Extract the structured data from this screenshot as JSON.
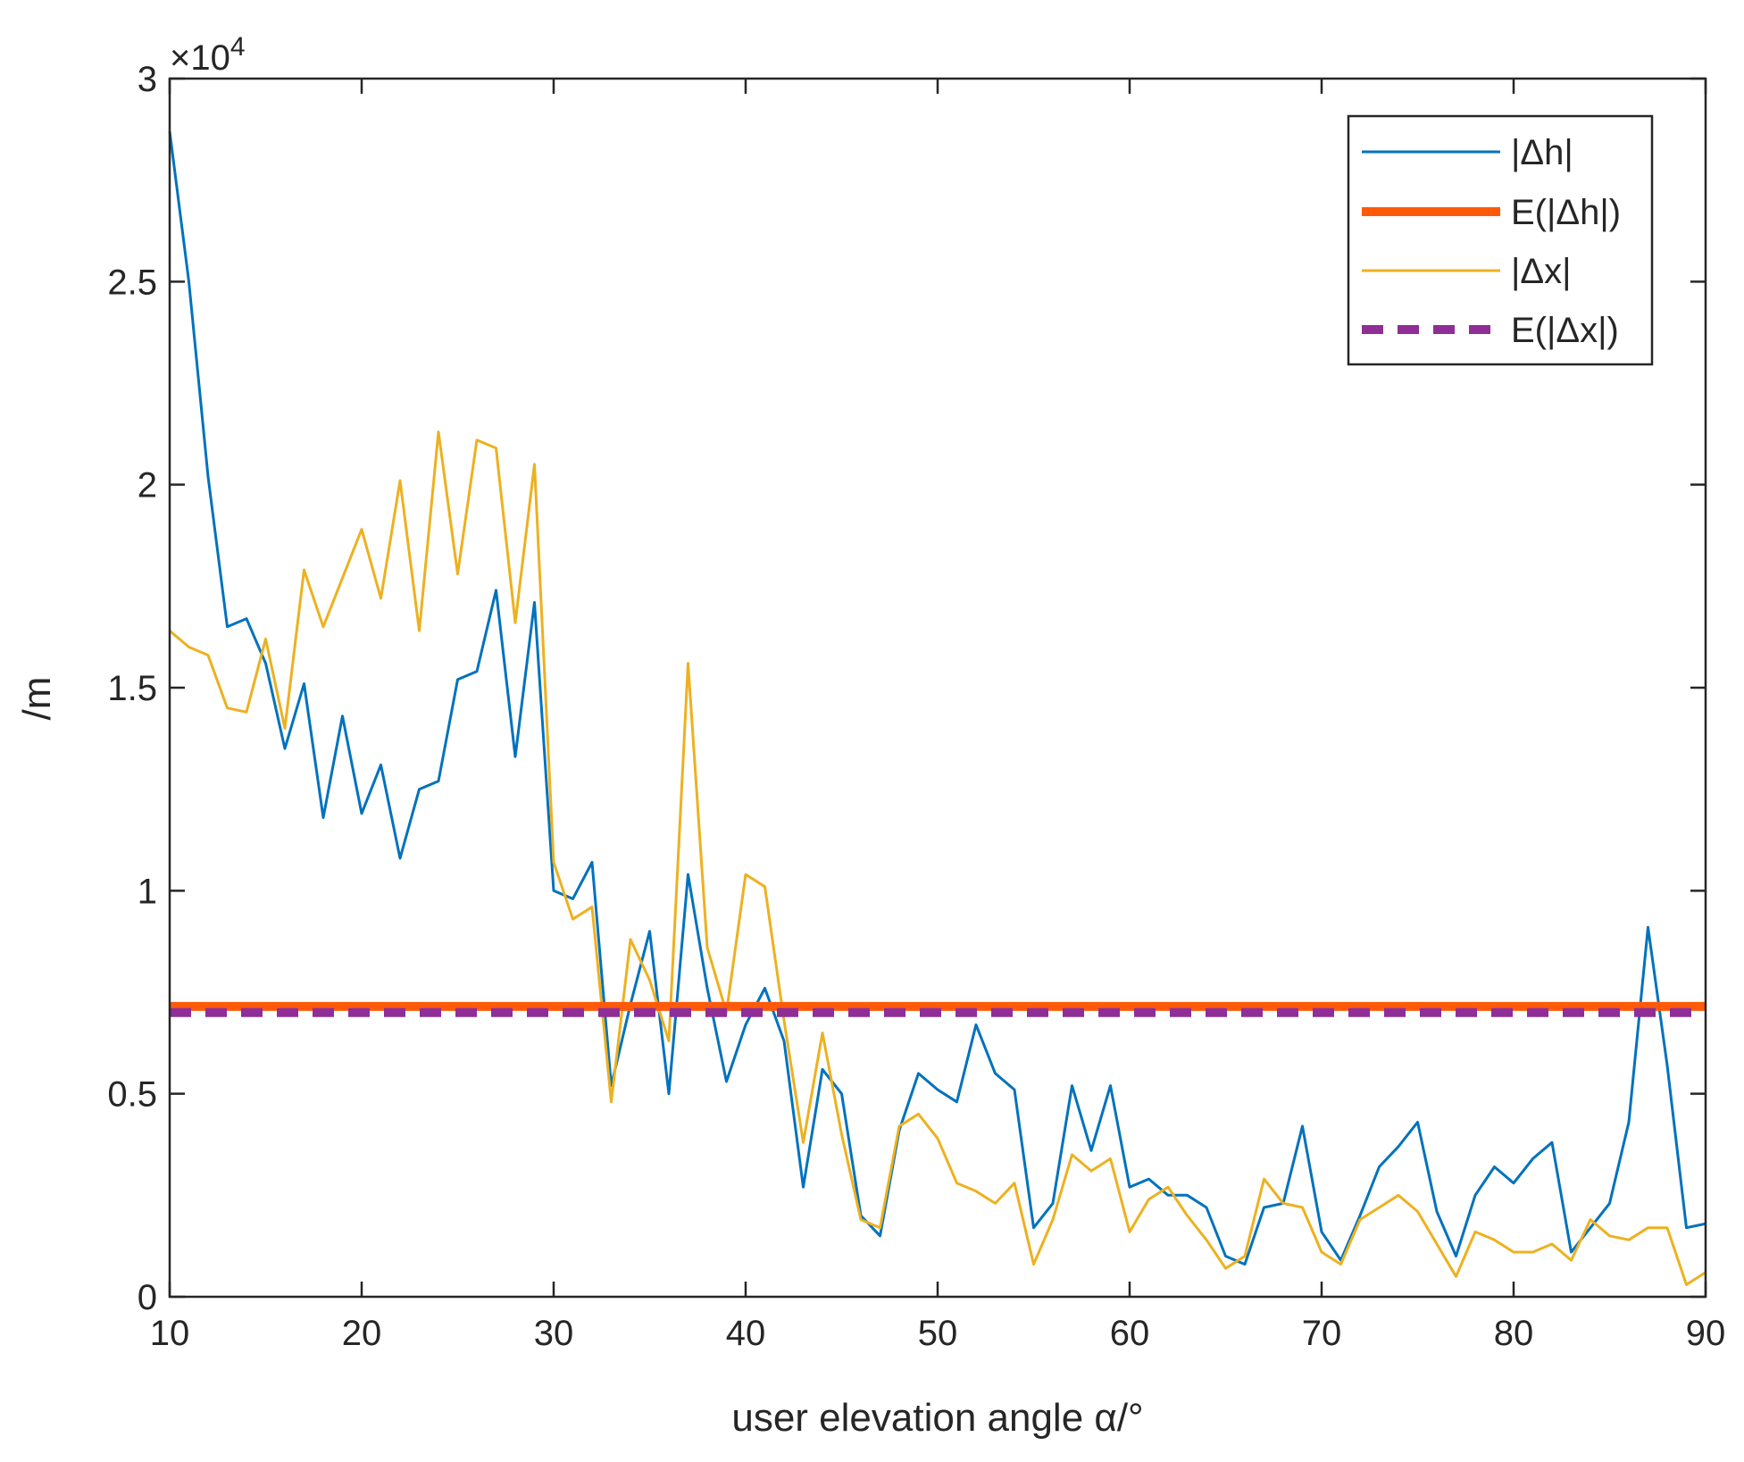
{
  "colors": {
    "dh": "#0072bd",
    "e_dh": "#ff5a0a",
    "dx": "#edb120",
    "e_dx": "#8e2e96",
    "axis": "#262626"
  },
  "chart_data": {
    "type": "line",
    "title": "",
    "xlabel": "user elevation angle α/°",
    "ylabel": "/m",
    "xlim": [
      10,
      90
    ],
    "ylim": [
      0,
      30000
    ],
    "exponent_label": "×10",
    "exponent_power": "4",
    "xticks": [
      10,
      20,
      30,
      40,
      50,
      60,
      70,
      80,
      90
    ],
    "xtick_labels": [
      "10",
      "20",
      "30",
      "40",
      "50",
      "60",
      "70",
      "80",
      "90"
    ],
    "yticks": [
      0,
      5000,
      10000,
      15000,
      20000,
      25000,
      30000
    ],
    "ytick_labels": [
      "0",
      "0.5",
      "1",
      "1.5",
      "2",
      "2.5",
      "3"
    ],
    "legend_position": "top-right",
    "x": [
      10,
      11,
      12,
      13,
      14,
      15,
      16,
      17,
      18,
      19,
      20,
      21,
      22,
      23,
      24,
      25,
      26,
      27,
      28,
      29,
      30,
      31,
      32,
      33,
      34,
      35,
      36,
      37,
      38,
      39,
      40,
      41,
      42,
      43,
      44,
      45,
      46,
      47,
      48,
      49,
      50,
      51,
      52,
      53,
      54,
      55,
      56,
      57,
      58,
      59,
      60,
      61,
      62,
      63,
      64,
      65,
      66,
      67,
      68,
      69,
      70,
      71,
      72,
      73,
      74,
      75,
      76,
      77,
      78,
      79,
      80,
      81,
      82,
      83,
      84,
      85,
      86,
      87,
      88,
      89,
      90
    ],
    "series": [
      {
        "name": "|Δh|",
        "style": "solid-thin",
        "values": [
          28700,
          25000,
          20200,
          16500,
          16700,
          15600,
          13500,
          15100,
          11800,
          14300,
          11900,
          13100,
          10800,
          12500,
          12700,
          15200,
          15400,
          17400,
          13300,
          17100,
          10000,
          9800,
          10700,
          5200,
          7200,
          9000,
          5000,
          10400,
          7600,
          5300,
          6700,
          7600,
          6300,
          2700,
          5600,
          5000,
          2000,
          1500,
          4100,
          5500,
          5100,
          4800,
          6700,
          5500,
          5100,
          1700,
          2300,
          5200,
          3600,
          5200,
          2700,
          2900,
          2500,
          2500,
          2200,
          1000,
          800,
          2200,
          2300,
          4200,
          1600,
          900,
          2000,
          3200,
          3700,
          4300,
          2100,
          1000,
          2500,
          3200,
          2800,
          3400,
          3800,
          1100,
          1700,
          2300,
          4300,
          9100,
          5700,
          1700,
          1800
        ]
      },
      {
        "name": "E(|Δh|)",
        "style": "solid-thick",
        "constant": 7150
      },
      {
        "name": "|Δx|",
        "style": "solid-thin",
        "values": [
          16400,
          16000,
          15800,
          14500,
          14400,
          16200,
          14000,
          17900,
          16500,
          17700,
          18900,
          17200,
          20100,
          16400,
          21300,
          17800,
          21100,
          20900,
          16600,
          20500,
          10700,
          9300,
          9600,
          4800,
          8800,
          7800,
          6300,
          15600,
          8600,
          7000,
          10400,
          10100,
          6800,
          3800,
          6500,
          4000,
          1900,
          1700,
          4200,
          4500,
          3900,
          2800,
          2600,
          2300,
          2800,
          800,
          1900,
          3500,
          3100,
          3400,
          1600,
          2400,
          2700,
          2000,
          1400,
          700,
          1000,
          2900,
          2300,
          2200,
          1100,
          800,
          1900,
          2200,
          2500,
          2100,
          1300,
          500,
          1600,
          1400,
          1100,
          1100,
          1300,
          900,
          1900,
          1500,
          1400,
          1700,
          1700,
          300,
          600
        ]
      },
      {
        "name": "E(|Δx|)",
        "style": "dashed-thick",
        "constant": 7000
      }
    ]
  }
}
